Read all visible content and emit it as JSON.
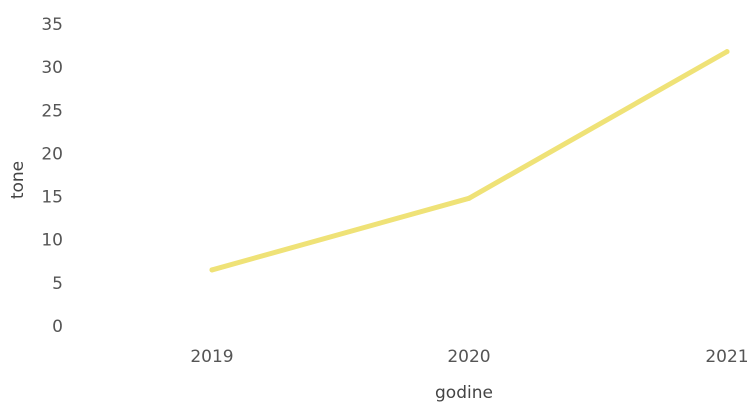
{
  "chart_data": {
    "type": "line",
    "title": "",
    "xlabel": "godine",
    "ylabel": "tone",
    "categories": [
      "2019",
      "2020",
      "2021"
    ],
    "series": [
      {
        "values": [
          6.5,
          14.8,
          31.8
        ]
      }
    ],
    "ylim": [
      0,
      35
    ],
    "yticks": [
      "0",
      "5",
      "10",
      "15",
      "20",
      "25",
      "30",
      "35"
    ],
    "grid": false,
    "line_color": "#efe277"
  }
}
